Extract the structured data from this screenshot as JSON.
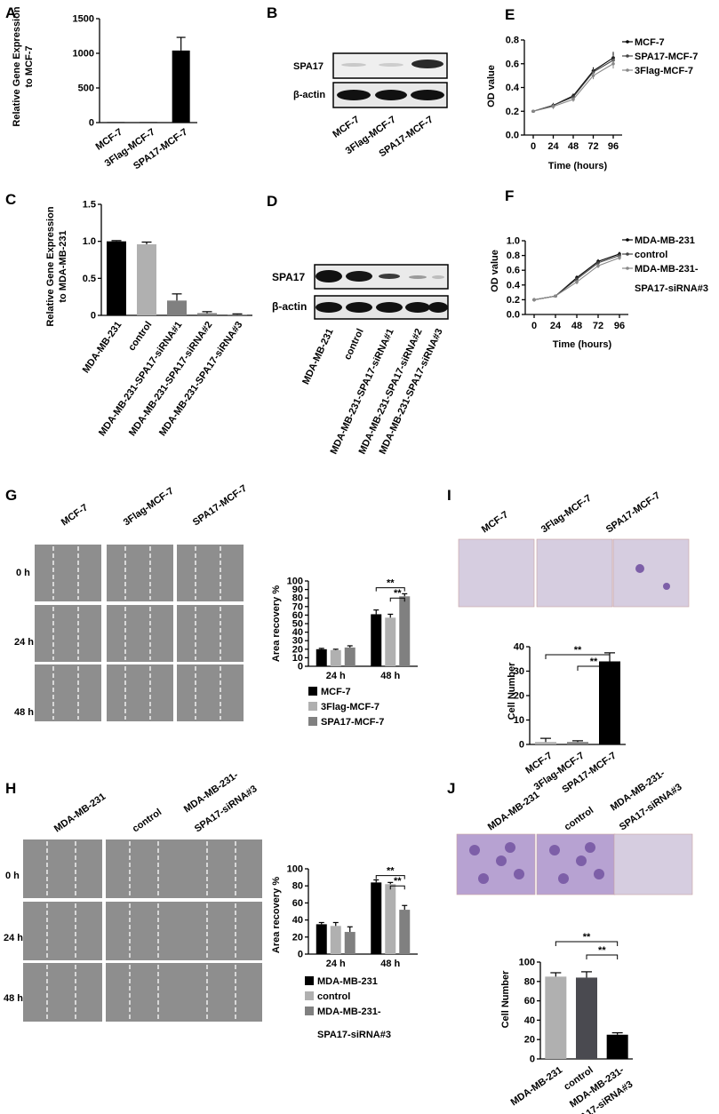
{
  "panel_labels": {
    "A": "A",
    "B": "B",
    "C": "C",
    "D": "D",
    "E": "E",
    "F": "F",
    "G": "G",
    "H": "H",
    "I": "I",
    "J": "J"
  },
  "colors": {
    "black": "#000000",
    "light_gray": "#b0b0b0",
    "mid_gray": "#808080",
    "dark_gray": "#4a4a50",
    "blot_bg": "#ececec",
    "wound": "#8e8e8e",
    "stain_bg": "#d6cde0",
    "stain_purple": "#7d5fa8"
  },
  "blot_B": {
    "rows": [
      "SPA17",
      "β-actin"
    ],
    "lanes": [
      "MCF-7",
      "3Flag-MCF-7",
      "SPA17-MCF-7"
    ]
  },
  "blot_D": {
    "rows": [
      "SPA17",
      "β-actin"
    ],
    "lanes": [
      "MDA-MB-231",
      "control",
      "MDA-MB-231-SPA17-siRNA#1",
      "MDA-MB-231-SPA17-siRNA#2",
      "MDA-MB-231-SPA17-siRNA#3"
    ]
  },
  "images_G": {
    "columns": [
      "MCF-7",
      "3Flag-MCF-7",
      "SPA17-MCF-7"
    ],
    "rows": [
      "0 h",
      "24 h",
      "48 h"
    ]
  },
  "images_H": {
    "columns": [
      "MDA-MB-231",
      "control",
      "MDA-MB-231-",
      "SPA17-siRNA#3"
    ],
    "rows": [
      "0 h",
      "24 h",
      "48 h"
    ]
  },
  "images_I": {
    "columns": [
      "MCF-7",
      "3Flag-MCF-7",
      "SPA17-MCF-7"
    ]
  },
  "images_J": {
    "columns": [
      "MDA-MB-231",
      "control",
      "MDA-MB-231-",
      "SPA17-siRNA#3"
    ]
  },
  "chart_data": [
    {
      "id": "A",
      "type": "bar",
      "ylabel": "Relative Gene Expression",
      "ylabel2": "to MCF-7",
      "categories": [
        "MCF-7",
        "3Flag-MCF-7",
        "SPA17-MCF-7"
      ],
      "values": [
        1,
        1,
        1040
      ],
      "errors": [
        0,
        0,
        190
      ],
      "ylim": [
        0,
        1500
      ],
      "yticks": [
        "0",
        "500",
        "1000",
        "1500"
      ]
    },
    {
      "id": "C",
      "type": "bar",
      "ylabel": "Relative Gene Expression",
      "ylabel2": "to MDA-MB-231",
      "categories": [
        "MDA-MB-231",
        "control",
        "MDA-MB-231-SPA17-siRNA#1",
        "MDA-MB-231-SPA17-siRNA#2",
        "MDA-MB-231-SPA17-siRNA#3"
      ],
      "values": [
        1.0,
        0.96,
        0.2,
        0.03,
        0.01
      ],
      "errors": [
        0.01,
        0.03,
        0.09,
        0.02,
        0.01
      ],
      "ylim": [
        0,
        1.5
      ],
      "yticks": [
        "0",
        "0.5",
        "1.0",
        "1.5"
      ]
    },
    {
      "id": "E",
      "type": "line",
      "xlabel": "Time (hours)",
      "ylabel": "OD value",
      "x": [
        0,
        24,
        48,
        72,
        96
      ],
      "xticks": [
        "0",
        "24",
        "48",
        "72",
        "96"
      ],
      "ylim": [
        0,
        0.8
      ],
      "yticks": [
        "0.0",
        "0.2",
        "0.4",
        "0.6",
        "0.8"
      ],
      "series": [
        {
          "name": "MCF-7",
          "values": [
            0.2,
            0.25,
            0.33,
            0.54,
            0.65
          ],
          "errors": [
            0.01,
            0.02,
            0.02,
            0.03,
            0.05
          ],
          "marker": "▪"
        },
        {
          "name": "SPA17-MCF-7",
          "values": [
            0.2,
            0.25,
            0.32,
            0.53,
            0.63
          ],
          "errors": [
            0.01,
            0.02,
            0.02,
            0.03,
            0.04
          ],
          "marker": "▴"
        },
        {
          "name": "3Flag-MCF-7",
          "values": [
            0.2,
            0.24,
            0.3,
            0.5,
            0.6
          ],
          "errors": [
            0.01,
            0.02,
            0.02,
            0.03,
            0.04
          ],
          "marker": "▾"
        }
      ]
    },
    {
      "id": "F",
      "type": "line",
      "xlabel": "Time (hours)",
      "ylabel": "OD value",
      "x": [
        0,
        24,
        48,
        72,
        96
      ],
      "xticks": [
        "0",
        "24",
        "48",
        "72",
        "96"
      ],
      "ylim": [
        0,
        1.0
      ],
      "yticks": [
        "0.0",
        "0.2",
        "0.4",
        "0.6",
        "0.8",
        "1.0"
      ],
      "series": [
        {
          "name": "MDA-MB-231",
          "values": [
            0.2,
            0.25,
            0.5,
            0.72,
            0.82
          ],
          "errors": [
            0.01,
            0.01,
            0.03,
            0.03,
            0.03
          ],
          "marker": "▪"
        },
        {
          "name": "control",
          "values": [
            0.2,
            0.25,
            0.48,
            0.7,
            0.8
          ],
          "errors": [
            0.01,
            0.01,
            0.03,
            0.03,
            0.03
          ],
          "marker": "▴"
        },
        {
          "name": "MDA-MB-231-",
          "name2": "SPA17-siRNA#3",
          "values": [
            0.2,
            0.25,
            0.44,
            0.66,
            0.77
          ],
          "errors": [
            0.01,
            0.01,
            0.03,
            0.03,
            0.03
          ],
          "marker": "▾"
        }
      ]
    },
    {
      "id": "G",
      "type": "bar",
      "ylabel": "Area recovery %",
      "categories": [
        "24 h",
        "48 h"
      ],
      "ylim": [
        0,
        100
      ],
      "yticks": [
        "0",
        "10",
        "20",
        "30",
        "40",
        "50",
        "60",
        "70",
        "80",
        "90",
        "100"
      ],
      "series": [
        {
          "name": "MCF-7",
          "values": [
            20,
            61
          ],
          "errors": [
            1,
            5
          ]
        },
        {
          "name": "3Flag-MCF-7",
          "values": [
            19,
            57
          ],
          "errors": [
            1,
            4
          ]
        },
        {
          "name": "SPA17-MCF-7",
          "values": [
            22,
            82
          ],
          "errors": [
            2,
            3
          ]
        }
      ],
      "significance": [
        "**",
        "**"
      ]
    },
    {
      "id": "H",
      "type": "bar",
      "ylabel": "Area recovery %",
      "categories": [
        "24 h",
        "48 h"
      ],
      "ylim": [
        0,
        100
      ],
      "yticks": [
        "0",
        "20",
        "40",
        "60",
        "80",
        "100"
      ],
      "series": [
        {
          "name": "MDA-MB-231",
          "values": [
            35,
            84
          ],
          "errors": [
            2,
            3
          ]
        },
        {
          "name": "control",
          "values": [
            33,
            82
          ],
          "errors": [
            4,
            2
          ]
        },
        {
          "name": "MDA-MB-231-",
          "name2": "SPA17-siRNA#3",
          "values": [
            26,
            52
          ],
          "errors": [
            6,
            5
          ]
        }
      ],
      "significance": [
        "**",
        "**"
      ]
    },
    {
      "id": "I",
      "type": "bar",
      "ylabel": "Cell Number",
      "categories": [
        "MCF-7",
        "3Flag-MCF-7",
        "SPA17-MCF-7"
      ],
      "values": [
        1,
        1,
        34
      ],
      "errors": [
        1.5,
        0.5,
        3.5
      ],
      "ylim": [
        0,
        40
      ],
      "yticks": [
        "0",
        "10",
        "20",
        "30",
        "40"
      ],
      "significance": [
        "**",
        "**"
      ]
    },
    {
      "id": "J",
      "type": "bar",
      "ylabel": "Cell Number",
      "categories": [
        "MDA-MB-231",
        "control",
        "MDA-MB-231-"
      ],
      "category3_line2": "SPA17-siRNA#3",
      "values": [
        85,
        84,
        25
      ],
      "errors": [
        4,
        6,
        2
      ],
      "ylim": [
        0,
        100
      ],
      "yticks": [
        "0",
        "20",
        "40",
        "60",
        "80",
        "100"
      ],
      "significance": [
        "**",
        "**"
      ]
    }
  ]
}
